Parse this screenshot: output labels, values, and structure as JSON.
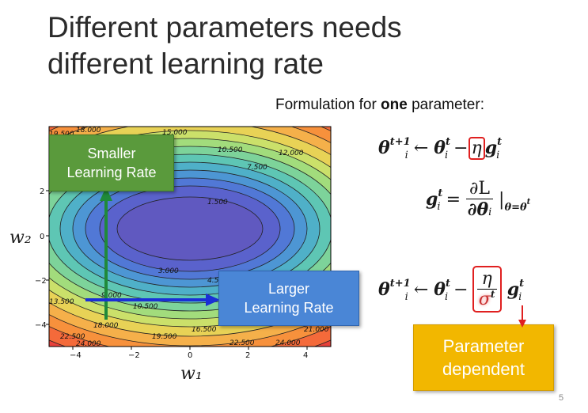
{
  "slide": {
    "title_line1": "Different parameters needs",
    "title_line2": "different learning rate",
    "formulation_prefix": "Formulation for ",
    "formulation_bold": "one",
    "formulation_suffix": " parameter:",
    "page_number": "5"
  },
  "boxes": {
    "smaller_line1": "Smaller",
    "smaller_line2": "Learning Rate",
    "larger_line1": "Larger",
    "larger_line2": "Learning Rate",
    "dependent_line1": "Parameter",
    "dependent_line2": "dependent"
  },
  "plot": {
    "xlabel": "w₁",
    "ylabel": "w₂",
    "x_ticks": [
      "−4",
      "−2",
      "0",
      "2",
      "4"
    ],
    "y_ticks": [
      "2",
      "0",
      "−2",
      "−4"
    ],
    "contour_labels": [
      "19.500",
      "18.000",
      "15.000",
      "12.000",
      "10.500",
      "7.500",
      "1.500",
      "3.000",
      "4.5",
      "9.000",
      "13.500",
      "10.500",
      "18.000",
      "19.500",
      "16.500",
      "21.000",
      "22.500",
      "24.000",
      "22.500",
      "24.000"
    ]
  },
  "math": {
    "theta": "θ",
    "g": "g",
    "eta": "η",
    "sigma": "σ",
    "arrow": "←",
    "minus": "−",
    "eq": "=",
    "partial_L": "∂L",
    "partial_theta": "∂θ",
    "sub_i": "i",
    "sup_t": "t",
    "sup_t1": "t+1",
    "eval_sub": "θ=θ",
    "bar": "|"
  },
  "colors": {
    "green_box": "#5a9a3c",
    "blue_box": "#4a86d6",
    "orange_box": "#f2b700",
    "highlight_red": "#e02020",
    "green_arrow": "#1f8a3a",
    "blue_arrow": "#1a2fd6"
  }
}
